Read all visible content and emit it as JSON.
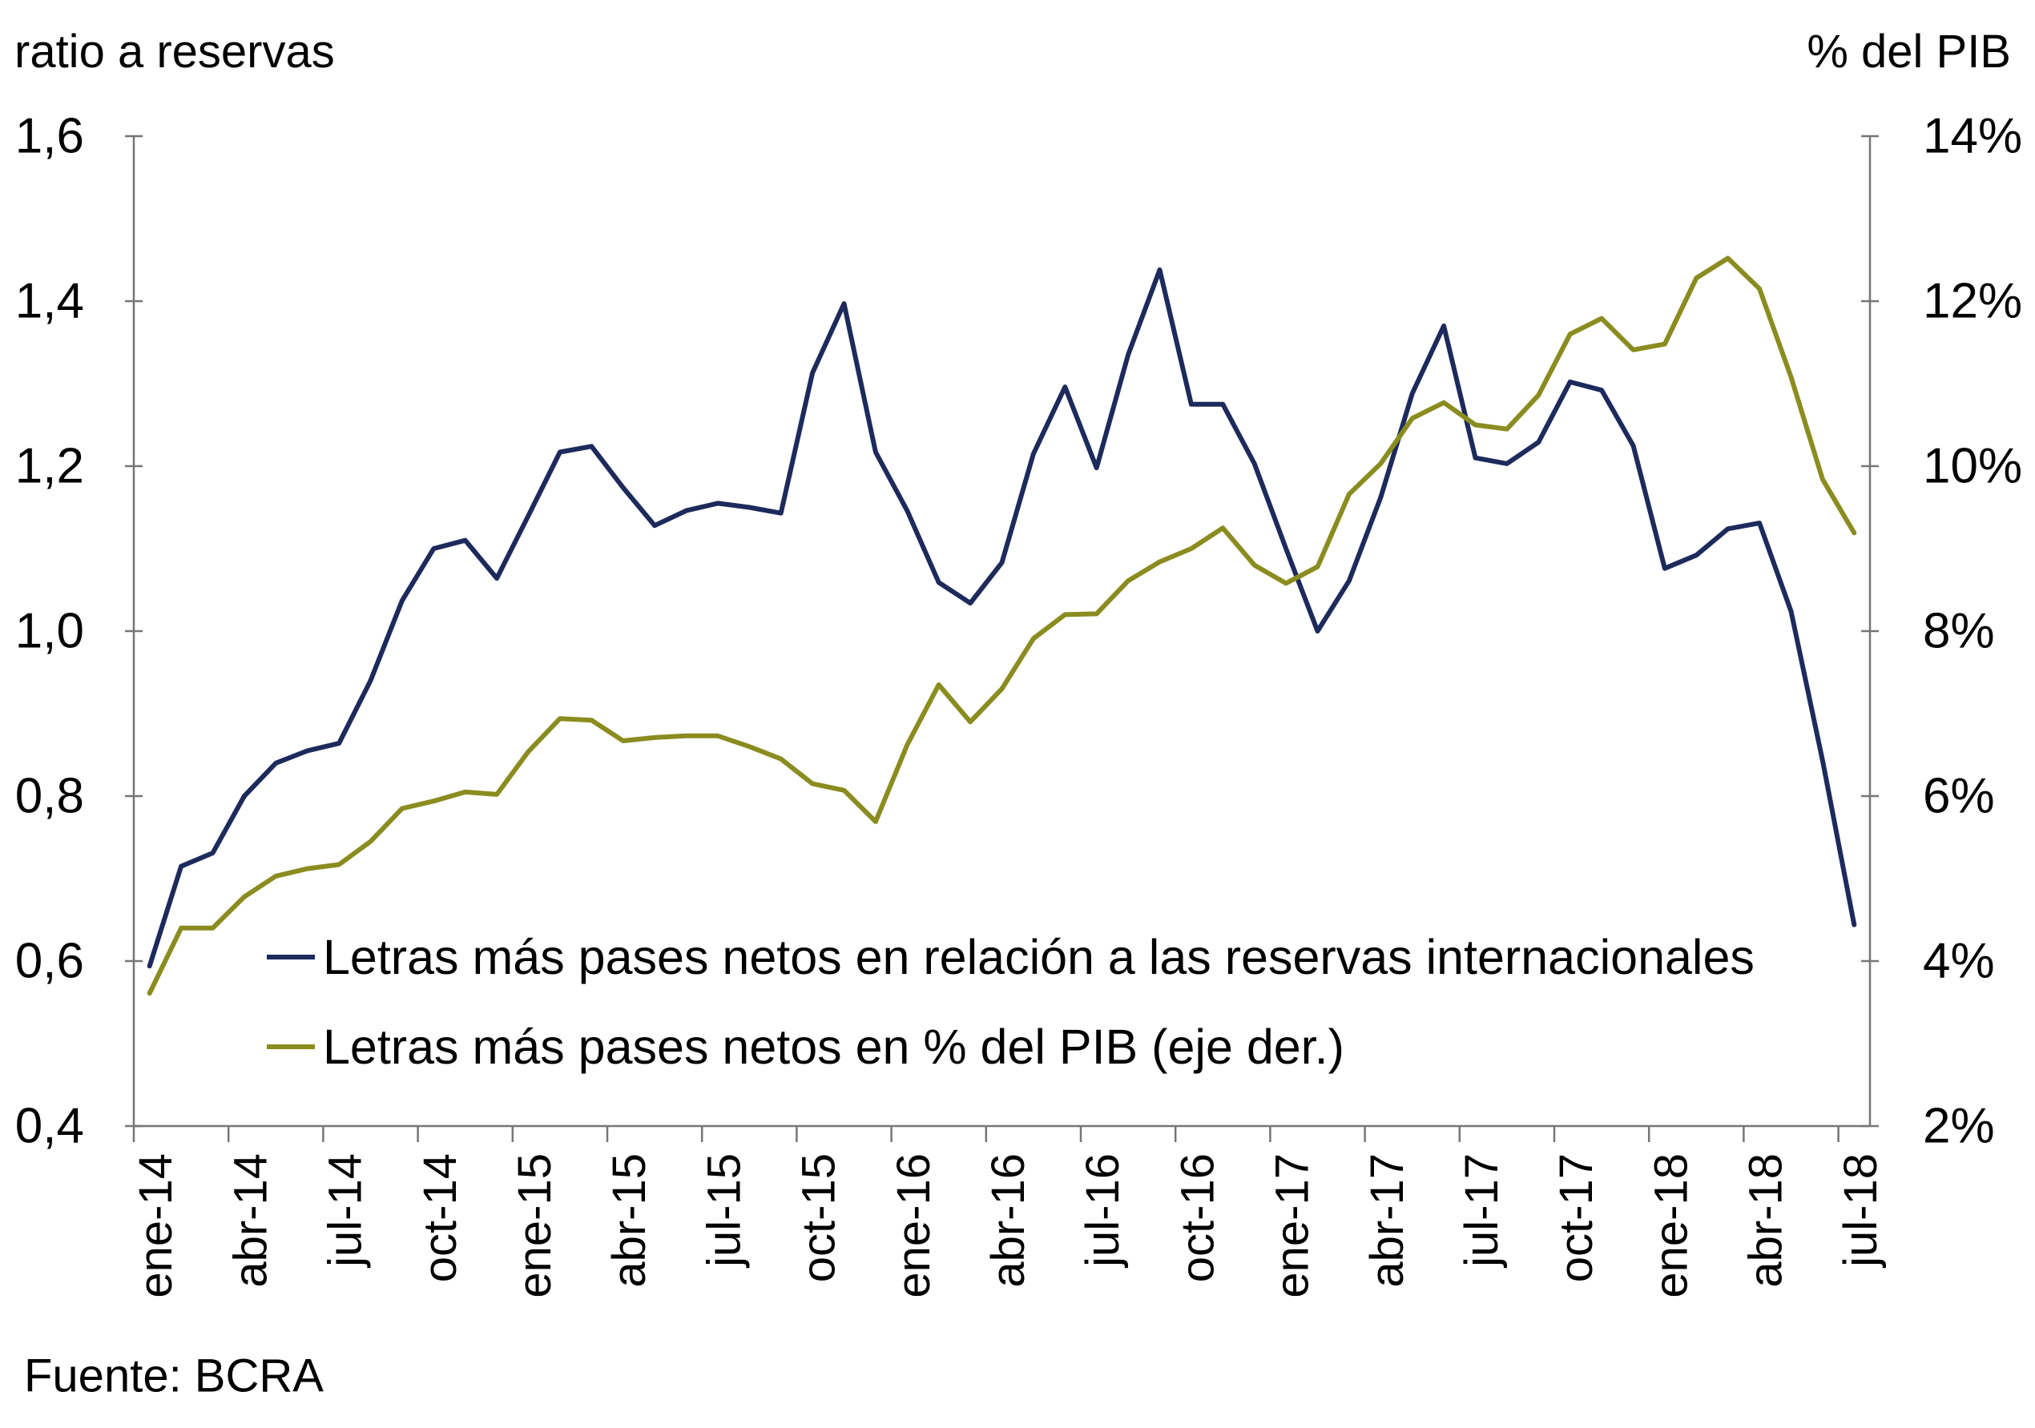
{
  "chart_data": {
    "type": "line",
    "title": "",
    "x_tick_labels": [
      "ene-14",
      "abr-14",
      "jul-14",
      "oct-14",
      "ene-15",
      "abr-15",
      "jul-15",
      "oct-15",
      "ene-16",
      "abr-16",
      "jul-16",
      "oct-16",
      "ene-17",
      "abr-17",
      "jul-17",
      "oct-17",
      "ene-18",
      "abr-18",
      "jul-18"
    ],
    "x_tick_every": 3,
    "y_left": {
      "label": "ratio a reservas",
      "range": [
        0.4,
        1.6
      ],
      "tick_values": [
        1.6,
        1.4,
        1.2,
        1.0,
        0.8,
        0.6,
        0.4
      ],
      "tick_labels": [
        "1,6",
        "1,4",
        "1,2",
        "1,0",
        "0,8",
        "0,6",
        "0,4"
      ]
    },
    "y_right": {
      "label": "% del PIB",
      "range": [
        2,
        14
      ],
      "tick_values": [
        14,
        12,
        10,
        8,
        6,
        4,
        2
      ],
      "tick_labels": [
        "14%",
        "12%",
        "10%",
        "8%",
        "6%",
        "4%",
        "2%"
      ]
    },
    "series": [
      {
        "name": "Letras más pases netos en relación a las reservas internacionales",
        "axis": "left",
        "color": "#1d2a5c",
        "values": [
          0.594,
          0.715,
          0.731,
          0.8,
          0.84,
          0.855,
          0.864,
          0.94,
          1.037,
          1.1,
          1.11,
          1.064,
          1.14,
          1.217,
          1.224,
          1.174,
          1.128,
          1.146,
          1.155,
          1.15,
          1.143,
          1.313,
          1.397,
          1.217,
          1.146,
          1.059,
          1.034,
          1.083,
          1.215,
          1.296,
          1.198,
          1.335,
          1.438,
          1.275,
          1.275,
          1.203,
          1.1,
          1.0,
          1.061,
          1.162,
          1.288,
          1.37,
          1.21,
          1.203,
          1.229,
          1.302,
          1.292,
          1.225,
          1.076,
          1.092,
          1.124,
          1.131,
          1.024,
          0.843,
          0.644
        ]
      },
      {
        "name": "Letras más pases netos en % del PIB (eje der.)",
        "axis": "right",
        "color": "#8a8c1f",
        "values": [
          3.61,
          4.4,
          4.4,
          4.78,
          5.03,
          5.12,
          5.17,
          5.45,
          5.85,
          5.94,
          6.05,
          6.02,
          6.54,
          6.94,
          6.92,
          6.67,
          6.71,
          6.73,
          6.73,
          6.6,
          6.45,
          6.15,
          6.07,
          5.69,
          6.62,
          7.35,
          6.9,
          7.3,
          7.91,
          8.2,
          8.21,
          8.61,
          8.84,
          9.0,
          9.25,
          8.8,
          8.58,
          8.78,
          9.66,
          10.03,
          10.58,
          10.77,
          10.5,
          10.45,
          10.86,
          11.6,
          11.79,
          11.41,
          11.48,
          12.28,
          12.52,
          12.15,
          11.08,
          9.84,
          9.19
        ]
      }
    ],
    "legend": {
      "placement": "center-left"
    },
    "grid": false,
    "source": "Fuente: BCRA"
  }
}
